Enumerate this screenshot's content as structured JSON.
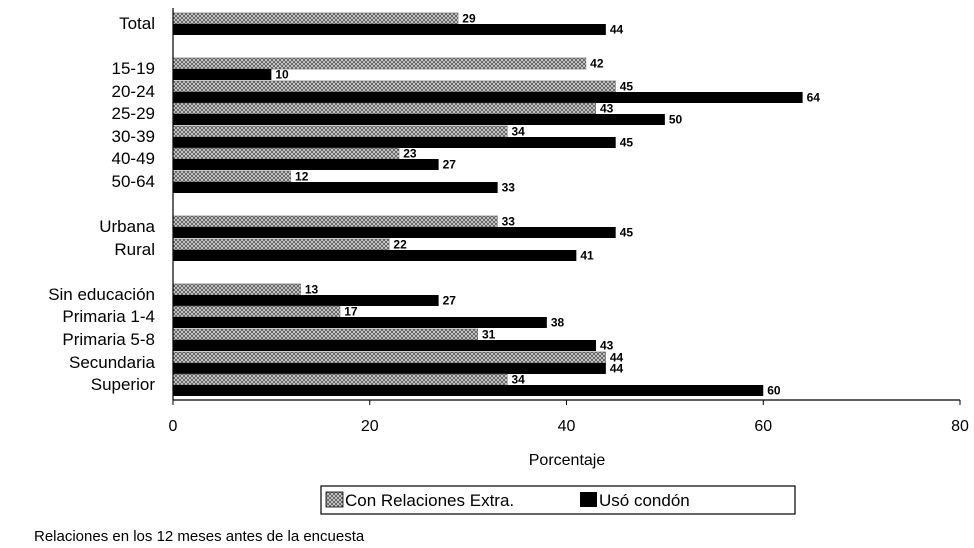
{
  "chart_data": {
    "type": "bar",
    "orientation": "horizontal",
    "categories": [
      "Total",
      "15-19",
      "20-24",
      "25-29",
      "30-39",
      "40-49",
      "50-64",
      "Urbana",
      "Rural",
      "Sin  educación",
      "Primaria 1-4",
      "Primaria 5-8",
      "Secundaria",
      "Superior"
    ],
    "series": [
      {
        "name": "Con Relaciones Extra.",
        "values": [
          29,
          42,
          45,
          43,
          34,
          23,
          12,
          33,
          22,
          13,
          17,
          31,
          44,
          34
        ],
        "value_labels": [
          "29",
          "42",
          "45",
          "43",
          "34",
          "23",
          "12",
          "33",
          "22",
          "13",
          "17",
          "31",
          "44",
          "34"
        ],
        "pattern": "crosshatch",
        "color": "#8a8a8a"
      },
      {
        "name": "Usó condón",
        "values": [
          44,
          10,
          64,
          50,
          45,
          27,
          33,
          45,
          41,
          27,
          38,
          43,
          44,
          60
        ],
        "value_labels": [
          "44",
          "10",
          "64",
          "50",
          "45",
          "27",
          "33",
          "45",
          "41",
          "27",
          "38",
          "43",
          "44",
          "60"
        ],
        "color": "#000000"
      }
    ],
    "xlim": [
      0,
      80
    ],
    "xticks": [
      "0",
      "20",
      "40",
      "60",
      "80"
    ],
    "xlabel": "Porcentaje",
    "legend_position": "bottom",
    "grid": false,
    "note": "Relaciones en los 12 meses antes de la encuesta"
  }
}
